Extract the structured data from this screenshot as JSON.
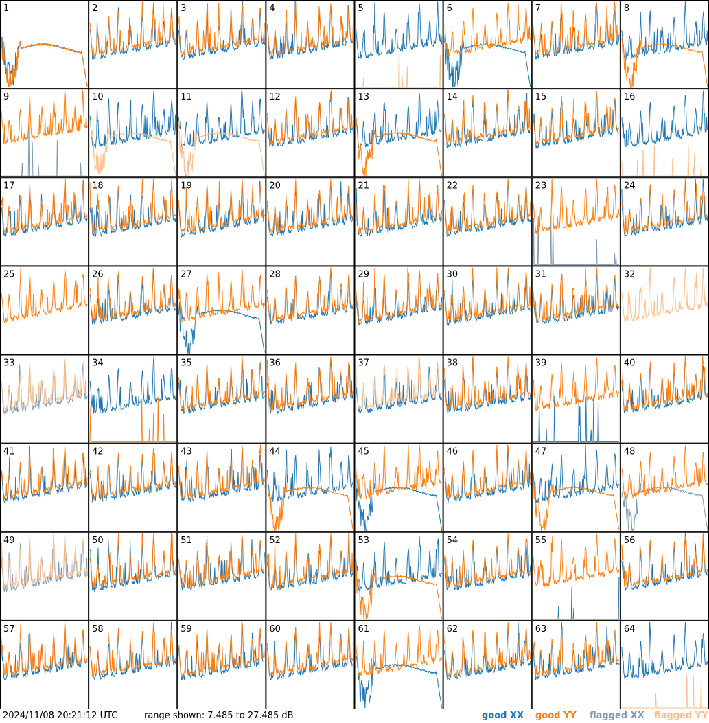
{
  "title": "",
  "timestamp": "2024/11/08 20:21:12 UTC",
  "range_text": "range shown: 7.485 to 27.485 dB",
  "legend": [
    {
      "key": "goodXX",
      "label": "good XX",
      "color": "#1f77b4"
    },
    {
      "key": "goodYY",
      "label": "good YY",
      "color": "#ff7f0e"
    },
    {
      "key": "flagXX",
      "label": "flagged XX",
      "color": "#7f9bb5"
    },
    {
      "key": "flagYY",
      "label": "flagged YY",
      "color": "#ffbe8a"
    }
  ],
  "chart_data": {
    "type": "line",
    "grid_layout": {
      "rows": 8,
      "cols": 8
    },
    "ylim": [
      7.485,
      27.485
    ],
    "yunit": "dB",
    "panels": [
      {
        "label": "1",
        "xx": "anomalous",
        "yy": "anomalous",
        "flag_xx": false,
        "flag_yy": false
      },
      {
        "label": "2",
        "xx": "normal",
        "yy": "normal",
        "flag_xx": false,
        "flag_yy": false
      },
      {
        "label": "3",
        "xx": "normal",
        "yy": "normal",
        "flag_xx": false,
        "flag_yy": false
      },
      {
        "label": "4",
        "xx": "normal",
        "yy": "normal",
        "flag_xx": false,
        "flag_yy": false
      },
      {
        "label": "5",
        "xx": "normal",
        "yy": "spiky",
        "flag_xx": false,
        "flag_yy": true
      },
      {
        "label": "6",
        "xx": "anomalous",
        "yy": "normal",
        "flag_xx": false,
        "flag_yy": false
      },
      {
        "label": "7",
        "xx": "normal",
        "yy": "normal",
        "flag_xx": false,
        "flag_yy": false
      },
      {
        "label": "8",
        "xx": "normal",
        "yy": "anomalous",
        "flag_xx": false,
        "flag_yy": false
      },
      {
        "label": "9",
        "xx": "spiky",
        "yy": "normal",
        "flag_xx": true,
        "flag_yy": false
      },
      {
        "label": "10",
        "xx": "normal",
        "yy": "anomalous",
        "flag_xx": false,
        "flag_yy": true
      },
      {
        "label": "11",
        "xx": "normal",
        "yy": "anomalous",
        "flag_xx": false,
        "flag_yy": true
      },
      {
        "label": "12",
        "xx": "normal",
        "yy": "normal",
        "flag_xx": false,
        "flag_yy": false
      },
      {
        "label": "13",
        "xx": "normal",
        "yy": "anomalous",
        "flag_xx": false,
        "flag_yy": false
      },
      {
        "label": "14",
        "xx": "normal",
        "yy": "normal",
        "flag_xx": false,
        "flag_yy": false
      },
      {
        "label": "15",
        "xx": "normal",
        "yy": "normal",
        "flag_xx": false,
        "flag_yy": false
      },
      {
        "label": "16",
        "xx": "normal",
        "yy": "spiky",
        "flag_xx": false,
        "flag_yy": true
      },
      {
        "label": "17",
        "xx": "normal",
        "yy": "normal",
        "flag_xx": false,
        "flag_yy": false
      },
      {
        "label": "18",
        "xx": "normal",
        "yy": "normal",
        "flag_xx": false,
        "flag_yy": false
      },
      {
        "label": "19",
        "xx": "normal",
        "yy": "normal",
        "flag_xx": false,
        "flag_yy": false
      },
      {
        "label": "20",
        "xx": "normal",
        "yy": "normal",
        "flag_xx": false,
        "flag_yy": false
      },
      {
        "label": "21",
        "xx": "normal",
        "yy": "normal",
        "flag_xx": false,
        "flag_yy": false
      },
      {
        "label": "22",
        "xx": "normal",
        "yy": "normal",
        "flag_xx": false,
        "flag_yy": false
      },
      {
        "label": "23",
        "xx": "spiky",
        "yy": "normal",
        "flag_xx": true,
        "flag_yy": false
      },
      {
        "label": "24",
        "xx": "normal",
        "yy": "normal",
        "flag_xx": false,
        "flag_yy": false
      },
      {
        "label": "25",
        "xx": "none",
        "yy": "normal",
        "flag_xx": false,
        "flag_yy": false
      },
      {
        "label": "26",
        "xx": "normal",
        "yy": "normal",
        "flag_xx": false,
        "flag_yy": false
      },
      {
        "label": "27",
        "xx": "anomalous",
        "yy": "normal",
        "flag_xx": false,
        "flag_yy": false
      },
      {
        "label": "28",
        "xx": "normal",
        "yy": "normal",
        "flag_xx": false,
        "flag_yy": false
      },
      {
        "label": "29",
        "xx": "normal",
        "yy": "normal",
        "flag_xx": false,
        "flag_yy": false
      },
      {
        "label": "30",
        "xx": "normal",
        "yy": "normal",
        "flag_xx": false,
        "flag_yy": false
      },
      {
        "label": "31",
        "xx": "normal",
        "yy": "normal",
        "flag_xx": false,
        "flag_yy": false
      },
      {
        "label": "32",
        "xx": "none",
        "yy": "normal",
        "flag_xx": false,
        "flag_yy": true
      },
      {
        "label": "33",
        "xx": "normal",
        "yy": "normal",
        "flag_xx": true,
        "flag_yy": true
      },
      {
        "label": "34",
        "xx": "normal",
        "yy": "spiky",
        "flag_xx": false,
        "flag_yy": false
      },
      {
        "label": "35",
        "xx": "normal",
        "yy": "normal",
        "flag_xx": false,
        "flag_yy": false
      },
      {
        "label": "36",
        "xx": "normal",
        "yy": "normal",
        "flag_xx": false,
        "flag_yy": false
      },
      {
        "label": "37",
        "xx": "normal",
        "yy": "normal",
        "flag_xx": false,
        "flag_yy": true
      },
      {
        "label": "38",
        "xx": "normal",
        "yy": "normal",
        "flag_xx": false,
        "flag_yy": false
      },
      {
        "label": "39",
        "xx": "spiky",
        "yy": "normal",
        "flag_xx": false,
        "flag_yy": false
      },
      {
        "label": "40",
        "xx": "normal",
        "yy": "normal",
        "flag_xx": false,
        "flag_yy": false
      },
      {
        "label": "41",
        "xx": "normal",
        "yy": "normal",
        "flag_xx": false,
        "flag_yy": false
      },
      {
        "label": "42",
        "xx": "normal",
        "yy": "normal",
        "flag_xx": false,
        "flag_yy": false
      },
      {
        "label": "43",
        "xx": "normal",
        "yy": "normal",
        "flag_xx": false,
        "flag_yy": false
      },
      {
        "label": "44",
        "xx": "normal",
        "yy": "anomalous",
        "flag_xx": false,
        "flag_yy": false
      },
      {
        "label": "45",
        "xx": "anomalous",
        "yy": "normal",
        "flag_xx": false,
        "flag_yy": false
      },
      {
        "label": "46",
        "xx": "normal",
        "yy": "normal",
        "flag_xx": false,
        "flag_yy": false
      },
      {
        "label": "47",
        "xx": "normal",
        "yy": "anomalous",
        "flag_xx": false,
        "flag_yy": false
      },
      {
        "label": "48",
        "xx": "anomalous",
        "yy": "normal",
        "flag_xx": true,
        "flag_yy": false
      },
      {
        "label": "49",
        "xx": "normal",
        "yy": "normal",
        "flag_xx": true,
        "flag_yy": true
      },
      {
        "label": "50",
        "xx": "normal",
        "yy": "normal",
        "flag_xx": false,
        "flag_yy": false
      },
      {
        "label": "51",
        "xx": "normal",
        "yy": "normal",
        "flag_xx": false,
        "flag_yy": false
      },
      {
        "label": "52",
        "xx": "normal",
        "yy": "normal",
        "flag_xx": false,
        "flag_yy": false
      },
      {
        "label": "53",
        "xx": "normal",
        "yy": "anomalous",
        "flag_xx": false,
        "flag_yy": false
      },
      {
        "label": "54",
        "xx": "normal",
        "yy": "normal",
        "flag_xx": false,
        "flag_yy": false
      },
      {
        "label": "55",
        "xx": "spiky",
        "yy": "normal",
        "flag_xx": false,
        "flag_yy": false
      },
      {
        "label": "56",
        "xx": "normal",
        "yy": "normal",
        "flag_xx": false,
        "flag_yy": false
      },
      {
        "label": "57",
        "xx": "normal",
        "yy": "normal",
        "flag_xx": false,
        "flag_yy": false
      },
      {
        "label": "58",
        "xx": "normal",
        "yy": "normal",
        "flag_xx": false,
        "flag_yy": false
      },
      {
        "label": "59",
        "xx": "normal",
        "yy": "normal",
        "flag_xx": false,
        "flag_yy": false
      },
      {
        "label": "60",
        "xx": "normal",
        "yy": "normal",
        "flag_xx": false,
        "flag_yy": false
      },
      {
        "label": "61",
        "xx": "anomalous",
        "yy": "normal",
        "flag_xx": false,
        "flag_yy": false
      },
      {
        "label": "62",
        "xx": "normal",
        "yy": "normal",
        "flag_xx": false,
        "flag_yy": false
      },
      {
        "label": "63",
        "xx": "normal",
        "yy": "normal",
        "flag_xx": false,
        "flag_yy": false
      },
      {
        "label": "64",
        "xx": "normal",
        "yy": "spiky",
        "flag_xx": false,
        "flag_yy": true
      }
    ]
  }
}
